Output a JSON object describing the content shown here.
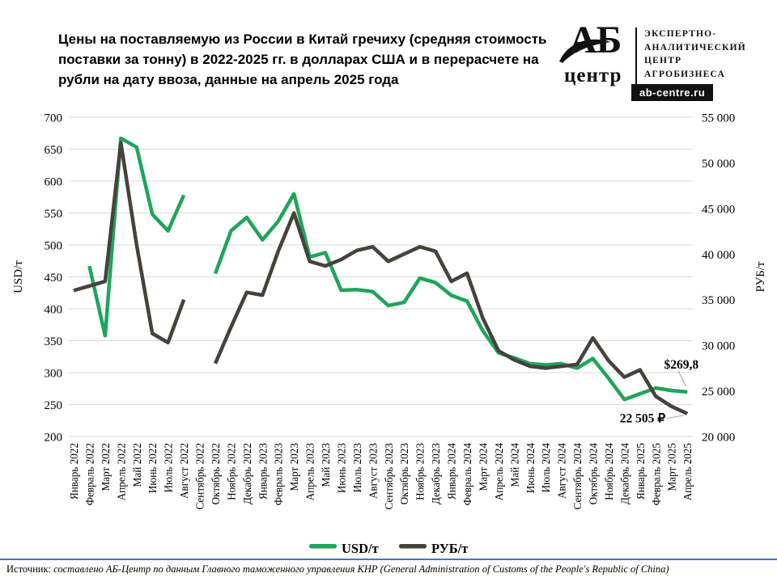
{
  "title": "Цены на поставляемую из России в Китай гречиху (средняя стоимость поставки за тонну) в 2022-2025 гг. в долларах США и в перерасчете на рубли на дату ввоза, данные на апрель 2025 года",
  "logo": {
    "abbr": "АБ",
    "abbr_sub": "центр",
    "tagline": "ЭКСПЕРТНО-\nАНАЛИТИЧЕСКИЙ\nЦЕНТР\nАГРОБИЗНЕСА",
    "site": "ab-centre.ru"
  },
  "chart_data": {
    "type": "line",
    "title": "Цены на поставляемую из России в Китай гречиху, USD/т и РУБ/т, 2022-2025",
    "categories": [
      "Январь 2022",
      "Февраль 2022",
      "Март 2022",
      "Апрель 2022",
      "Май 2022",
      "Июнь 2022",
      "Июль 2022",
      "Август 2022",
      "Сентябрь 2022",
      "Октябрь 2022",
      "Ноябрь 2022",
      "Декабрь 2022",
      "Январь 2023",
      "Февраль 2023",
      "Март 2023",
      "Апрель 2023",
      "Май 2023",
      "Июнь 2023",
      "Июль 2023",
      "Август 2023",
      "Сентябрь 2023",
      "Октябрь 2023",
      "Ноябрь 2023",
      "Декабрь 2023",
      "Январь 2024",
      "Февраль 2024",
      "Март 2024",
      "Апрель 2024",
      "Май 2024",
      "Июнь 2024",
      "Июль 2024",
      "Август 2024",
      "Сентябрь 2024",
      "Октябрь 2024",
      "Ноябрь 2024",
      "Декабрь 2024",
      "Январь 2025",
      "Февраль 2025",
      "Март 2025",
      "Апрель 2025"
    ],
    "series": [
      {
        "name": "USD/т",
        "axis": "left",
        "color": "#1ea55a",
        "values": [
          null,
          467,
          358,
          667,
          653,
          548,
          522,
          578,
          null,
          455,
          522,
          543,
          508,
          537,
          580,
          481,
          488,
          429,
          430,
          427,
          405,
          410,
          448,
          441,
          421,
          412,
          366,
          331,
          323,
          314,
          312,
          314,
          307,
          322,
          291,
          258,
          267,
          276,
          272,
          269.8
        ]
      },
      {
        "name": "РУБ/т",
        "axis": "right",
        "color": "#46413a",
        "values": [
          36000,
          36500,
          37000,
          52200,
          41000,
          31300,
          30300,
          35000,
          null,
          28000,
          32000,
          35800,
          35500,
          40300,
          44500,
          39200,
          38700,
          39400,
          40400,
          40800,
          39200,
          40000,
          40800,
          40300,
          37000,
          37900,
          33000,
          29400,
          28400,
          27700,
          27500,
          27700,
          27900,
          30800,
          28300,
          26500,
          27300,
          24400,
          23300,
          22505
        ]
      }
    ],
    "left_axis": {
      "label": "USD/т",
      "min": 200,
      "max": 700,
      "step": 50
    },
    "right_axis": {
      "label": "РУБ/т",
      "min": 20000,
      "max": 55000,
      "step": 5000
    },
    "annotations": [
      {
        "text": "$269,8",
        "series": "USD/т"
      },
      {
        "text": "22 505 ₽",
        "series": "РУБ/т"
      }
    ],
    "legend_position": "bottom",
    "grid": true
  },
  "footer": {
    "source_label": "Источник:",
    "source_text": "составлено АБ-Центр по данным Главного таможенного управления КНР (General Administration of Customs of the People's Republic of China)"
  }
}
